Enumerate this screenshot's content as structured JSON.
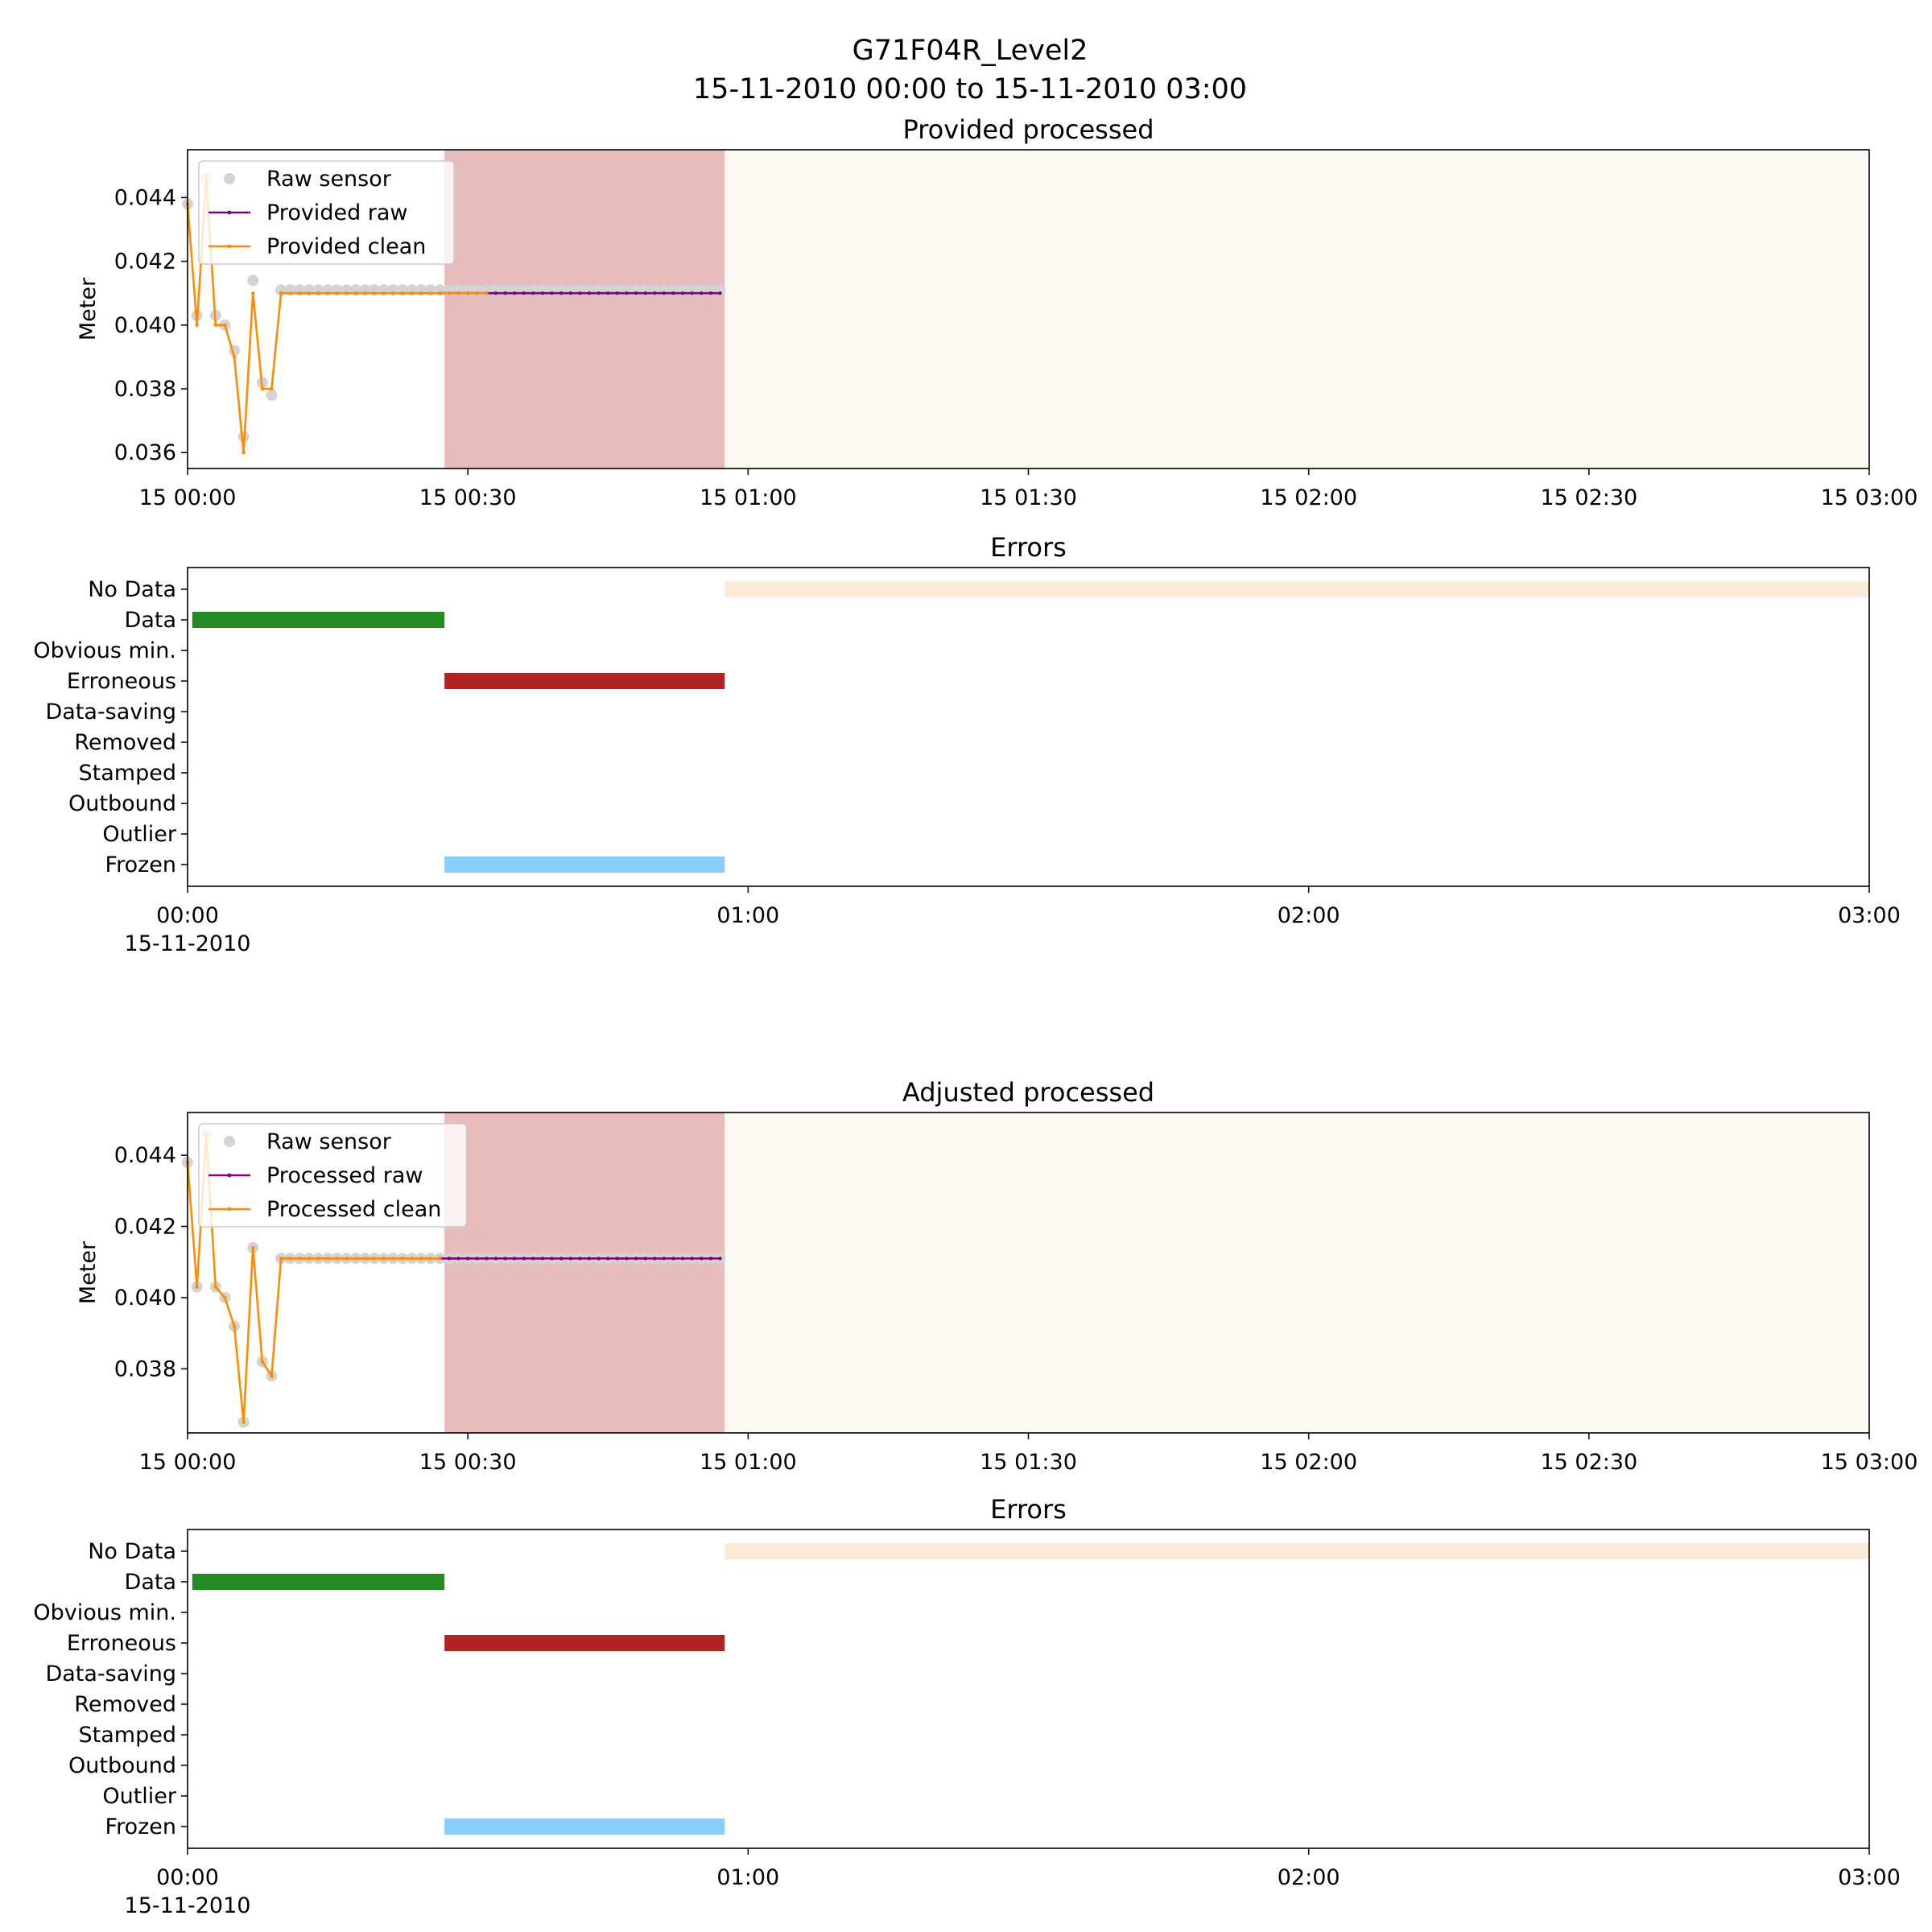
{
  "figure": {
    "title": "G71F04R_Level2",
    "subtitle": "15-11-2010 00:00 to 15-11-2010 03:00"
  },
  "colors": {
    "raw_sensor": "#d3d3d3",
    "raw_line": "#800080",
    "clean_line": "#ff8c00",
    "erroneous_span": "#e6bcbc",
    "nodata_span": "#fcf9f4",
    "data_bar": "#228b22",
    "erroneous_bar": "#b22222",
    "frozen_bar": "#87cefa",
    "nodata_bar": "#faebd7"
  },
  "chart_data": [
    {
      "type": "line",
      "title": "Provided processed",
      "ylabel": "Meter",
      "xlabel": "",
      "x_unit": "minutes since 15-11-2010 00:00",
      "xlim": [
        0,
        180
      ],
      "ylim": [
        0.0355,
        0.0455
      ],
      "yticks": [
        "0.036",
        "0.038",
        "0.040",
        "0.042",
        "0.044"
      ],
      "ytick_values": [
        0.036,
        0.038,
        0.04,
        0.042,
        0.044
      ],
      "xticks": [
        "15 00:00",
        "15 00:30",
        "15 01:00",
        "15 01:30",
        "15 02:00",
        "15 02:30",
        "15 03:00"
      ],
      "xtick_values": [
        0,
        30,
        60,
        90,
        120,
        150,
        180
      ],
      "legend": [
        "Raw sensor",
        "Provided raw",
        "Provided clean"
      ],
      "legend_position": "upper-left",
      "spans": [
        {
          "label": "Erroneous",
          "from": 27.5,
          "to": 57.5
        },
        {
          "label": "No Data",
          "from": 57.5,
          "to": 180
        }
      ],
      "series": [
        {
          "name": "Raw sensor",
          "style": "markers",
          "x": [
            0,
            1,
            2,
            3,
            4,
            5,
            6,
            7,
            8,
            9,
            10,
            11,
            12,
            13,
            14,
            15,
            16,
            17,
            18,
            19,
            20,
            21,
            22,
            23,
            24,
            25,
            26,
            27,
            28,
            29,
            30,
            31,
            32,
            33,
            34,
            35,
            36,
            37,
            38,
            39,
            40,
            41,
            42,
            43,
            44,
            45,
            46,
            47,
            48,
            49,
            50,
            51,
            52,
            53,
            54,
            55,
            56,
            57
          ],
          "values": [
            0.0438,
            0.0403,
            0.0446,
            0.0403,
            0.04,
            0.0392,
            0.0365,
            0.0414,
            0.0382,
            0.0378,
            0.0411,
            0.0411,
            0.0411,
            0.0411,
            0.0411,
            0.0411,
            0.0411,
            0.0411,
            0.0411,
            0.0411,
            0.0411,
            0.0411,
            0.0411,
            0.0411,
            0.0411,
            0.0411,
            0.0411,
            0.0411,
            0.0411,
            0.0411,
            0.0411,
            0.0411,
            0.0411,
            0.0411,
            0.0411,
            0.0411,
            0.0411,
            0.0411,
            0.0411,
            0.0411,
            0.0411,
            0.0411,
            0.0411,
            0.0411,
            0.0411,
            0.0411,
            0.0411,
            0.0411,
            0.0411,
            0.0411,
            0.0411,
            0.0411,
            0.0411,
            0.0411,
            0.0411,
            0.0411,
            0.0411,
            0.0411
          ]
        },
        {
          "name": "Provided raw",
          "style": "line-markers",
          "x": [
            27,
            28,
            29,
            30,
            31,
            32,
            33,
            34,
            35,
            36,
            37,
            38,
            39,
            40,
            41,
            42,
            43,
            44,
            45,
            46,
            47,
            48,
            49,
            50,
            51,
            52,
            53,
            54,
            55,
            56,
            57
          ],
          "values": [
            0.041,
            0.041,
            0.041,
            0.041,
            0.041,
            0.041,
            0.041,
            0.041,
            0.041,
            0.041,
            0.041,
            0.041,
            0.041,
            0.041,
            0.041,
            0.041,
            0.041,
            0.041,
            0.041,
            0.041,
            0.041,
            0.041,
            0.041,
            0.041,
            0.041,
            0.041,
            0.041,
            0.041,
            0.041,
            0.041,
            0.041
          ]
        },
        {
          "name": "Provided clean",
          "style": "line-markers",
          "x": [
            0,
            1,
            2,
            3,
            4,
            5,
            6,
            7,
            8,
            9,
            10,
            11,
            12,
            13,
            14,
            15,
            16,
            17,
            18,
            19,
            20,
            21,
            22,
            23,
            24,
            25,
            26,
            27,
            28,
            29,
            30,
            31,
            32
          ],
          "values": [
            0.0438,
            0.04,
            0.0446,
            0.04,
            0.04,
            0.039,
            0.036,
            0.041,
            0.038,
            0.038,
            0.041,
            0.041,
            0.041,
            0.041,
            0.041,
            0.041,
            0.041,
            0.041,
            0.041,
            0.041,
            0.041,
            0.041,
            0.041,
            0.041,
            0.041,
            0.041,
            0.041,
            0.041,
            0.041,
            0.041,
            0.041,
            0.041,
            0.041
          ]
        }
      ]
    },
    {
      "type": "timeline",
      "title": "Errors",
      "x_unit": "minutes since 15-11-2010 00:00",
      "xlim": [
        0,
        180
      ],
      "categories": [
        "No Data",
        "Data",
        "Obvious min.",
        "Erroneous",
        "Data-saving",
        "Removed",
        "Stamped",
        "Outbound",
        "Outlier",
        "Frozen"
      ],
      "xticks": [
        "00:00",
        "01:00",
        "02:00",
        "03:00"
      ],
      "xtick_values": [
        0,
        60,
        120,
        180
      ],
      "xtick_sublabel": "15-11-2010",
      "bars": [
        {
          "category": "No Data",
          "from": 57.5,
          "to": 180
        },
        {
          "category": "Data",
          "from": 0.5,
          "to": 27.5
        },
        {
          "category": "Erroneous",
          "from": 27.5,
          "to": 57.5
        },
        {
          "category": "Frozen",
          "from": 27.5,
          "to": 57.5
        }
      ]
    },
    {
      "type": "line",
      "title": "Adjusted processed",
      "ylabel": "Meter",
      "xlabel": "",
      "x_unit": "minutes since 15-11-2010 00:00",
      "xlim": [
        0,
        180
      ],
      "ylim": [
        0.0362,
        0.0452
      ],
      "yticks": [
        "0.038",
        "0.040",
        "0.042",
        "0.044"
      ],
      "ytick_values": [
        0.038,
        0.04,
        0.042,
        0.044
      ],
      "xticks": [
        "15 00:00",
        "15 00:30",
        "15 01:00",
        "15 01:30",
        "15 02:00",
        "15 02:30",
        "15 03:00"
      ],
      "xtick_values": [
        0,
        30,
        60,
        90,
        120,
        150,
        180
      ],
      "legend": [
        "Raw sensor",
        "Processed raw",
        "Processed clean"
      ],
      "legend_position": "upper-left",
      "spans": [
        {
          "label": "Erroneous",
          "from": 27.5,
          "to": 57.5
        },
        {
          "label": "No Data",
          "from": 57.5,
          "to": 180
        }
      ],
      "series": [
        {
          "name": "Raw sensor",
          "style": "markers",
          "x": [
            0,
            1,
            2,
            3,
            4,
            5,
            6,
            7,
            8,
            9,
            10,
            11,
            12,
            13,
            14,
            15,
            16,
            17,
            18,
            19,
            20,
            21,
            22,
            23,
            24,
            25,
            26,
            27,
            28,
            29,
            30,
            31,
            32,
            33,
            34,
            35,
            36,
            37,
            38,
            39,
            40,
            41,
            42,
            43,
            44,
            45,
            46,
            47,
            48,
            49,
            50,
            51,
            52,
            53,
            54,
            55,
            56,
            57
          ],
          "values": [
            0.0438,
            0.0403,
            0.0446,
            0.0403,
            0.04,
            0.0392,
            0.0365,
            0.0414,
            0.0382,
            0.0378,
            0.0411,
            0.0411,
            0.0411,
            0.0411,
            0.0411,
            0.0411,
            0.0411,
            0.0411,
            0.0411,
            0.0411,
            0.0411,
            0.0411,
            0.0411,
            0.0411,
            0.0411,
            0.0411,
            0.0411,
            0.0411,
            0.0411,
            0.0411,
            0.0411,
            0.0411,
            0.0411,
            0.0411,
            0.0411,
            0.0411,
            0.0411,
            0.0411,
            0.0411,
            0.0411,
            0.0411,
            0.0411,
            0.0411,
            0.0411,
            0.0411,
            0.0411,
            0.0411,
            0.0411,
            0.0411,
            0.0411,
            0.0411,
            0.0411,
            0.0411,
            0.0411,
            0.0411,
            0.0411,
            0.0411,
            0.0411
          ]
        },
        {
          "name": "Processed raw",
          "style": "line-markers",
          "x": [
            27,
            28,
            29,
            30,
            31,
            32,
            33,
            34,
            35,
            36,
            37,
            38,
            39,
            40,
            41,
            42,
            43,
            44,
            45,
            46,
            47,
            48,
            49,
            50,
            51,
            52,
            53,
            54,
            55,
            56,
            57
          ],
          "values": [
            0.0411,
            0.0411,
            0.0411,
            0.0411,
            0.0411,
            0.0411,
            0.0411,
            0.0411,
            0.0411,
            0.0411,
            0.0411,
            0.0411,
            0.0411,
            0.0411,
            0.0411,
            0.0411,
            0.0411,
            0.0411,
            0.0411,
            0.0411,
            0.0411,
            0.0411,
            0.0411,
            0.0411,
            0.0411,
            0.0411,
            0.0411,
            0.0411,
            0.0411,
            0.0411,
            0.0411
          ]
        },
        {
          "name": "Processed clean",
          "style": "line-markers",
          "x": [
            0,
            1,
            2,
            3,
            4,
            5,
            6,
            7,
            8,
            9,
            10,
            11,
            12,
            13,
            14,
            15,
            16,
            17,
            18,
            19,
            20,
            21,
            22,
            23,
            24,
            25,
            26,
            27
          ],
          "values": [
            0.0438,
            0.0403,
            0.0446,
            0.0403,
            0.04,
            0.0392,
            0.0365,
            0.0414,
            0.0382,
            0.0378,
            0.0411,
            0.0411,
            0.0411,
            0.0411,
            0.0411,
            0.0411,
            0.0411,
            0.0411,
            0.0411,
            0.0411,
            0.0411,
            0.0411,
            0.0411,
            0.0411,
            0.0411,
            0.0411,
            0.0411,
            0.0411
          ]
        }
      ]
    },
    {
      "type": "timeline",
      "title": "Errors",
      "x_unit": "minutes since 15-11-2010 00:00",
      "xlim": [
        0,
        180
      ],
      "categories": [
        "No Data",
        "Data",
        "Obvious min.",
        "Erroneous",
        "Data-saving",
        "Removed",
        "Stamped",
        "Outbound",
        "Outlier",
        "Frozen"
      ],
      "xticks": [
        "00:00",
        "01:00",
        "02:00",
        "03:00"
      ],
      "xtick_values": [
        0,
        60,
        120,
        180
      ],
      "xtick_sublabel": "15-11-2010",
      "bars": [
        {
          "category": "No Data",
          "from": 57.5,
          "to": 180
        },
        {
          "category": "Data",
          "from": 0.5,
          "to": 27.5
        },
        {
          "category": "Erroneous",
          "from": 27.5,
          "to": 57.5
        },
        {
          "category": "Frozen",
          "from": 27.5,
          "to": 57.5
        }
      ]
    }
  ]
}
